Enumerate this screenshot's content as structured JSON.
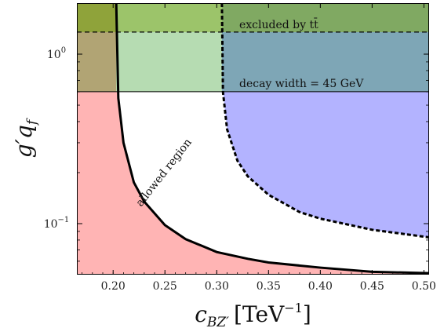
{
  "chart_data": {
    "type": "area",
    "xlabel_base": "c",
    "xlabel_sub": "BZ′",
    "xlabel_unit": "[TeV",
    "xlabel_exp": "−1",
    "xlabel_close": "]",
    "ylabel": "g′q",
    "ylabel_sub": "f",
    "xlim": [
      0.165,
      0.505
    ],
    "ylim": [
      0.05,
      2.0
    ],
    "y_scale": "log",
    "x_ticks": [
      0.2,
      0.25,
      0.3,
      0.35,
      0.4,
      0.45,
      0.5
    ],
    "x_tick_labels": [
      "0.20",
      "0.25",
      "0.30",
      "0.35",
      "0.40",
      "0.45",
      "0.50"
    ],
    "y_ticks": [
      0.1,
      1.0
    ],
    "y_tick_base": "10",
    "y_tick_exps": [
      "−1",
      "0"
    ],
    "ttbar_limit": 1.35,
    "width_limit": 0.6,
    "x_vertical_red": 0.203,
    "x_vertical_dashed": 0.305,
    "annotations": {
      "ttbar": "excluded by tt̄",
      "width": "decay width = 45 GeV",
      "allowed": "allowed region"
    },
    "series": [
      {
        "role": "solid-boundary",
        "x": [
          0.203,
          0.205,
          0.21,
          0.22,
          0.23,
          0.25,
          0.27,
          0.3,
          0.33,
          0.35,
          0.4,
          0.45,
          0.505
        ],
        "y": [
          2.0,
          0.55,
          0.3,
          0.175,
          0.135,
          0.098,
          0.081,
          0.068,
          0.062,
          0.059,
          0.055,
          0.052,
          0.051
        ]
      },
      {
        "role": "dashed-boundary",
        "x": [
          0.305,
          0.306,
          0.31,
          0.32,
          0.33,
          0.35,
          0.38,
          0.4,
          0.45,
          0.505
        ],
        "y": [
          2.0,
          0.6,
          0.36,
          0.235,
          0.19,
          0.148,
          0.117,
          0.107,
          0.092,
          0.083
        ]
      }
    ],
    "colors": {
      "red_region": "#ffb4b4",
      "blue_region": "#b3b3ff",
      "green_band": "#b6dcb2",
      "ttbar_band": "#9cc46a",
      "olive_overlap": "#b1a474",
      "teal_overlap": "#7ea6b6",
      "darkolive_overlap": "#8fa33a",
      "darkgreen_overlap": "#80a962"
    }
  }
}
